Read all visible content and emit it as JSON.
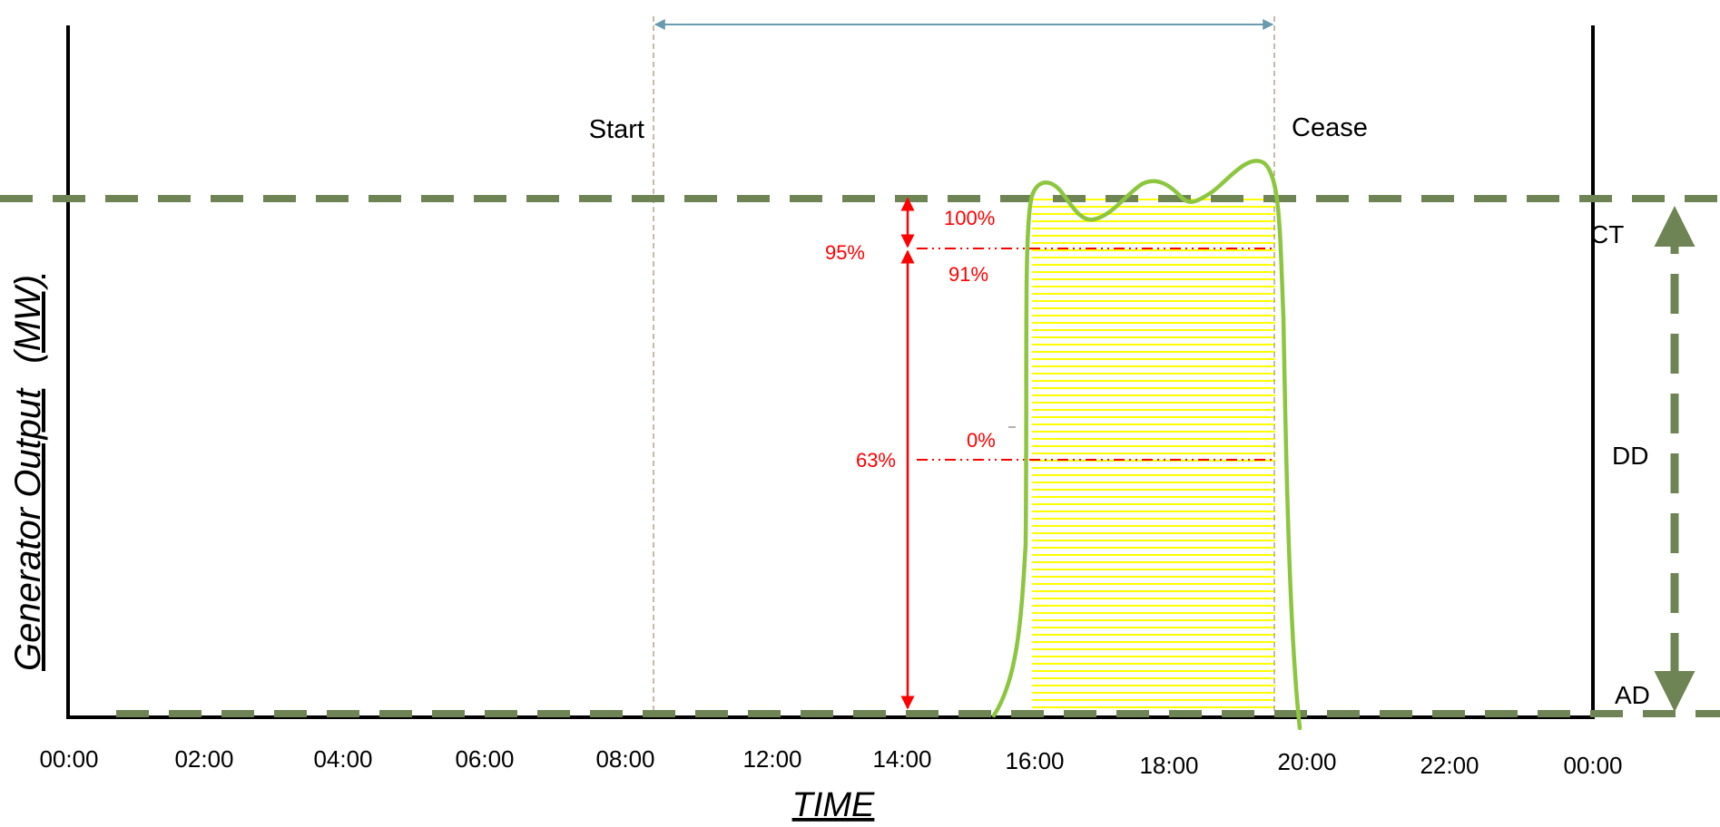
{
  "chart_data": {
    "type": "line",
    "xlabel": "TIME",
    "ylabel_main": "Generator Output",
    "ylabel_unit": "(MW)",
    "x_ticks": [
      "00:00",
      "02:00",
      "04:00",
      "06:00",
      "08:00",
      "12:00",
      "14:00",
      "16:00",
      "18:00",
      "20:00",
      "22:00",
      "00:00"
    ],
    "markers": {
      "start": "Start",
      "cease": "Cease"
    },
    "levels": {
      "ct": "CT",
      "dd": "DD",
      "ad": "AD"
    },
    "annotations": {
      "left_95": "95%",
      "left_63": "63%",
      "right_100": "100%",
      "right_91": "91%",
      "right_0": "0%"
    },
    "colors": {
      "output_line": "#8cc63f",
      "band_line": "#6e8454",
      "shading": "#ffff00",
      "measure": "#ff0000",
      "duration_arrow": "#6a9ab0"
    }
  }
}
